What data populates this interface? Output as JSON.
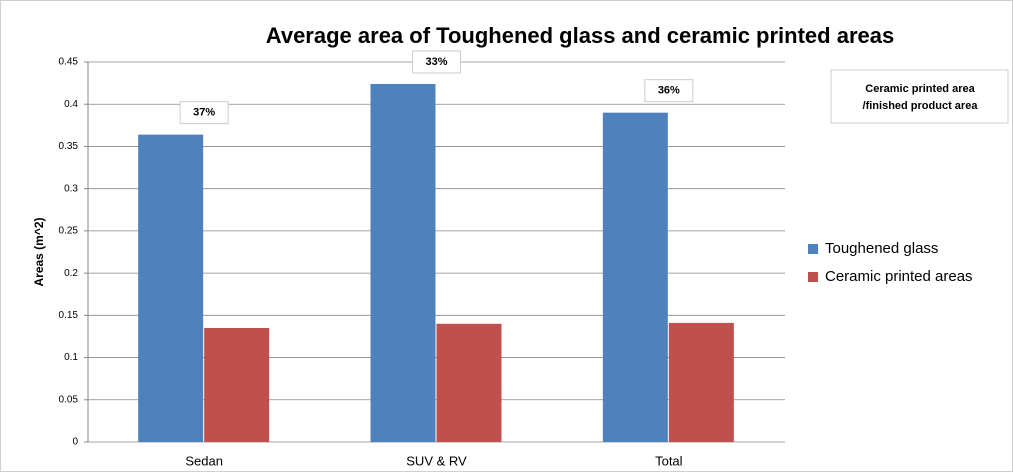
{
  "chart_data": {
    "type": "bar",
    "title": "Average area of Toughened glass and ceramic printed areas",
    "y_label": "Areas (m^2)",
    "categories": [
      "Sedan",
      "SUV & RV",
      "Total"
    ],
    "series": [
      {
        "name": "Toughened glass",
        "color": "#4f81bd",
        "values": [
          0.364,
          0.424,
          0.39
        ]
      },
      {
        "name": "Ceramic printed areas",
        "color": "#c0504d",
        "values": [
          0.135,
          0.14,
          0.141
        ]
      }
    ],
    "annotations": [
      "37%",
      "33%",
      "36%"
    ],
    "note": [
      "Ceramic printed area",
      "/finished product area"
    ],
    "ylim": [
      0,
      0.45
    ],
    "yticks": [
      0,
      0.05,
      0.1,
      0.15,
      0.2,
      0.25,
      0.3,
      0.35,
      0.4,
      0.45
    ],
    "grid": true,
    "legend": "right"
  }
}
